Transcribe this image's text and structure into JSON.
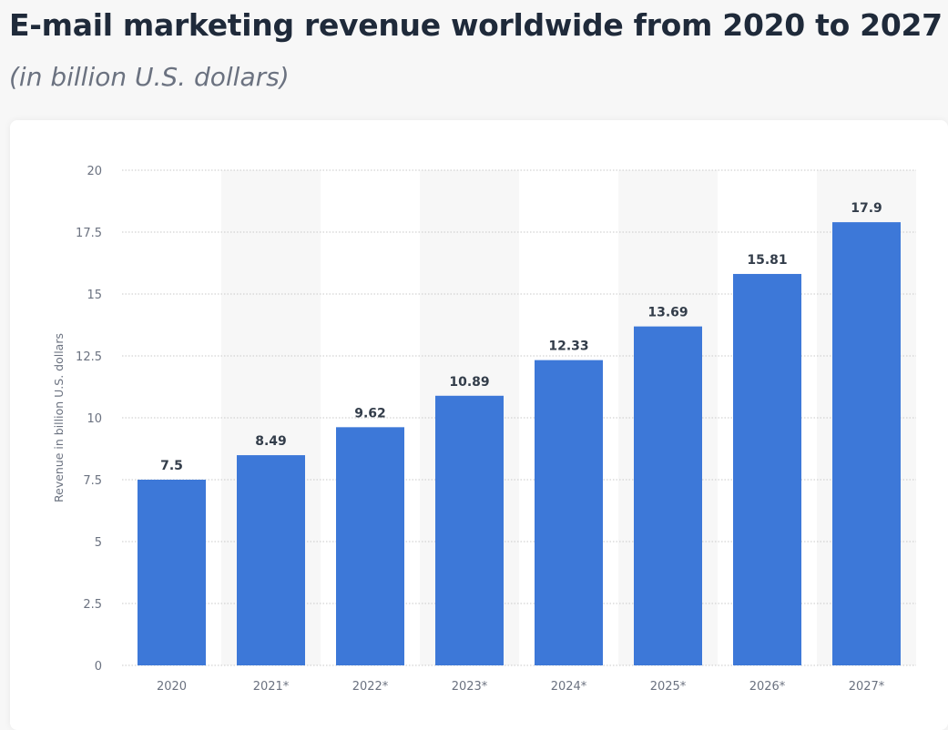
{
  "header": {
    "title": "E-mail marketing revenue worldwide from 2020 to 2027",
    "subtitle": "(in billion U.S. dollars)"
  },
  "chart_data": {
    "type": "bar",
    "title": "E-mail marketing revenue worldwide from 2020 to 2027",
    "subtitle": "(in billion U.S. dollars)",
    "xlabel": "",
    "ylabel": "Revenue in billion U.S. dollars",
    "categories": [
      "2020",
      "2021*",
      "2022*",
      "2023*",
      "2024*",
      "2025*",
      "2026*",
      "2027*"
    ],
    "values": [
      7.5,
      8.49,
      9.62,
      10.89,
      12.33,
      13.69,
      15.81,
      17.9
    ],
    "value_labels": [
      "7.5",
      "8.49",
      "9.62",
      "10.89",
      "12.33",
      "13.69",
      "15.81",
      "17.9"
    ],
    "ylim": [
      0,
      20
    ],
    "yticks": [
      "0",
      "2.5",
      "5",
      "7.5",
      "10",
      "12.5",
      "15",
      "17.5",
      "20"
    ],
    "grid": true,
    "colors": {
      "bar": "#3d78d8",
      "alt_column": "#f7f7f7",
      "grid": "#c8c8c8"
    }
  }
}
